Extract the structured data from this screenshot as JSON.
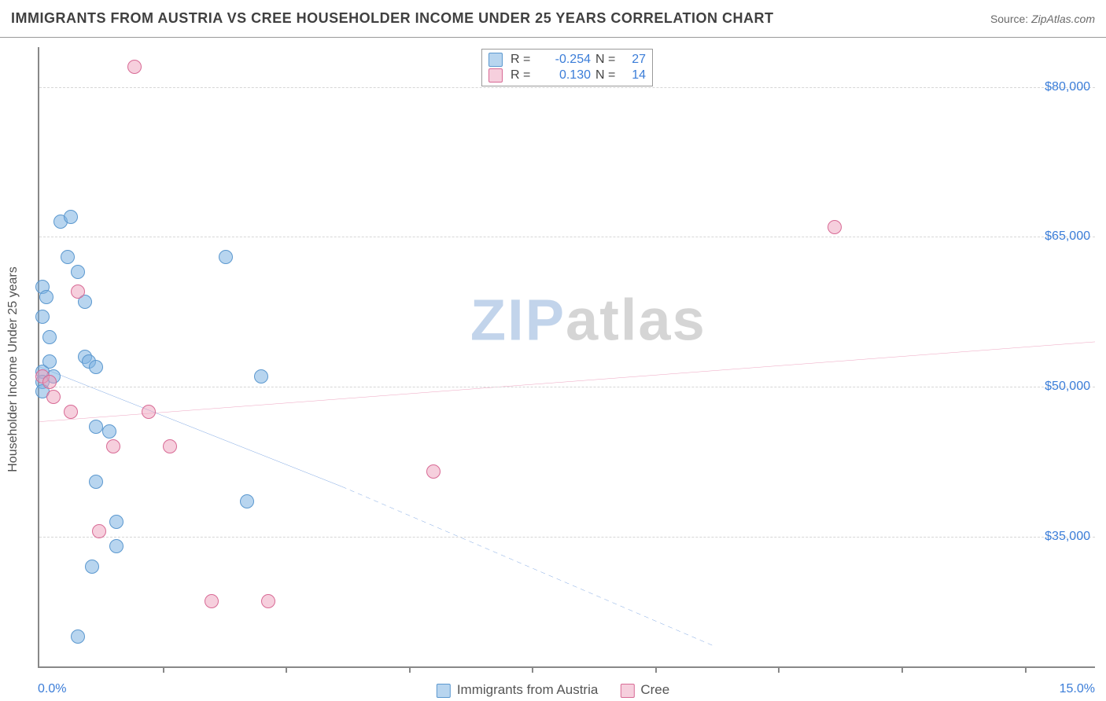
{
  "title": "IMMIGRANTS FROM AUSTRIA VS CREE HOUSEHOLDER INCOME UNDER 25 YEARS CORRELATION CHART",
  "source_prefix": "Source: ",
  "source_name": "ZipAtlas.com",
  "ylabel": "Householder Income Under 25 years",
  "watermark_a": "ZIP",
  "watermark_b": "atlas",
  "chart": {
    "type": "scatter",
    "background_color": "#ffffff",
    "grid_color": "#d6d6d6",
    "axis_color": "#888888",
    "text_color": "#505050",
    "value_color": "#3b7dd8",
    "xlim": [
      0,
      15
    ],
    "ylim": [
      22000,
      84000
    ],
    "xrange_labels": {
      "min": "0.0%",
      "max": "15.0%"
    },
    "xtick_positions": [
      1.75,
      3.5,
      5.25,
      7.0,
      8.75,
      10.5,
      12.25,
      14.0
    ],
    "ygrid": [
      {
        "value": 35000,
        "label": "$35,000"
      },
      {
        "value": 50000,
        "label": "$50,000"
      },
      {
        "value": 65000,
        "label": "$65,000"
      },
      {
        "value": 80000,
        "label": "$80,000"
      }
    ],
    "marker_radius": 9,
    "marker_border_width": 1.5,
    "series": [
      {
        "key": "austria",
        "label": "Immigrants from Austria",
        "fill": "rgba(126,178,226,0.55)",
        "stroke": "#5b98cf",
        "R": "-0.254",
        "N": "27",
        "trend": {
          "color": "#2d6fd0",
          "width": 2.5,
          "solid": {
            "x1": 0,
            "y1": 52000,
            "x2": 4.3,
            "y2": 40000
          },
          "dashed": {
            "x1": 4.3,
            "y1": 40000,
            "x2": 9.6,
            "y2": 24000
          }
        },
        "points": [
          [
            0.05,
            60000
          ],
          [
            0.05,
            57000
          ],
          [
            0.05,
            51500
          ],
          [
            0.05,
            50500
          ],
          [
            0.05,
            49500
          ],
          [
            0.1,
            59000
          ],
          [
            0.15,
            55000
          ],
          [
            0.15,
            52500
          ],
          [
            0.2,
            51000
          ],
          [
            0.3,
            66500
          ],
          [
            0.4,
            63000
          ],
          [
            0.45,
            67000
          ],
          [
            0.55,
            61500
          ],
          [
            0.65,
            58500
          ],
          [
            0.65,
            53000
          ],
          [
            0.7,
            52500
          ],
          [
            0.8,
            52000
          ],
          [
            0.8,
            46000
          ],
          [
            0.8,
            40500
          ],
          [
            1.0,
            45500
          ],
          [
            1.1,
            36500
          ],
          [
            1.1,
            34000
          ],
          [
            0.75,
            32000
          ],
          [
            0.55,
            25000
          ],
          [
            2.65,
            63000
          ],
          [
            3.15,
            51000
          ],
          [
            2.95,
            38500
          ]
        ]
      },
      {
        "key": "cree",
        "label": "Cree",
        "fill": "rgba(238,160,188,0.5)",
        "stroke": "#d86a95",
        "R": "0.130",
        "N": "14",
        "trend": {
          "color": "#e26a99",
          "width": 2.5,
          "solid": {
            "x1": 0,
            "y1": 46500,
            "x2": 15,
            "y2": 54500
          },
          "dashed": null
        },
        "points": [
          [
            0.05,
            51000
          ],
          [
            0.15,
            50500
          ],
          [
            0.2,
            49000
          ],
          [
            0.45,
            47500
          ],
          [
            0.55,
            59500
          ],
          [
            0.85,
            35500
          ],
          [
            1.05,
            44000
          ],
          [
            1.55,
            47500
          ],
          [
            1.85,
            44000
          ],
          [
            2.45,
            28500
          ],
          [
            3.25,
            28500
          ],
          [
            5.6,
            41500
          ],
          [
            11.3,
            66000
          ],
          [
            1.35,
            82000
          ]
        ]
      }
    ]
  },
  "legend_top": {
    "r_label": "R =",
    "n_label": "N ="
  }
}
